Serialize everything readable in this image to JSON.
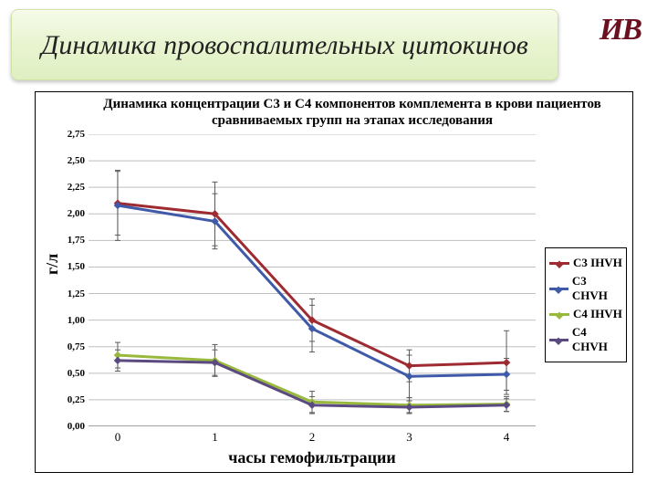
{
  "banner": {
    "title": "Динамика провоспалительных цитокинов"
  },
  "logo": {
    "text": "ИВ"
  },
  "chart": {
    "type": "line",
    "title": "Динамика концентрации С3 и С4 компонентов комплемента в крови пациентов сравниваемых групп на этапах исследования",
    "title_fontsize": 15,
    "xlabel": "часы гемофильтрации",
    "ylabel": "г/л",
    "label_fontsize": 18,
    "xlim": [
      -0.3,
      4.3
    ],
    "ylim": [
      0.0,
      2.75
    ],
    "ytick_step": 0.25,
    "x_categories": [
      "0",
      "1",
      "2",
      "3",
      "4"
    ],
    "grid_color": "#bfbfbf",
    "axis_color": "#808080",
    "background_color": "#ffffff",
    "line_width": 3,
    "marker_size": 6,
    "errorbar_color": "#5a5a5a",
    "errorbar_width": 1,
    "cap_width": 6,
    "series": [
      {
        "name": "C3 IHVH",
        "color": "#9e2b31",
        "marker": "diamond",
        "x": [
          0,
          1,
          2,
          3,
          4
        ],
        "y": [
          2.1,
          2.0,
          1.0,
          0.57,
          0.6
        ],
        "err": [
          0.3,
          0.3,
          0.2,
          0.15,
          0.3
        ]
      },
      {
        "name": "C3 CHVH",
        "color": "#3f5aa8",
        "marker": "diamond",
        "x": [
          0,
          1,
          2,
          3,
          4
        ],
        "y": [
          2.08,
          1.93,
          0.92,
          0.47,
          0.49
        ],
        "err": [
          0.33,
          0.26,
          0.22,
          0.2,
          0.15
        ]
      },
      {
        "name": "C4 IHVH",
        "color": "#98b93c",
        "marker": "diamond",
        "x": [
          0,
          1,
          2,
          3,
          4
        ],
        "y": [
          0.67,
          0.62,
          0.23,
          0.2,
          0.21
        ],
        "err": [
          0.12,
          0.15,
          0.1,
          0.07,
          0.07
        ]
      },
      {
        "name": "C4 CHVH",
        "color": "#5a4a80",
        "marker": "diamond",
        "x": [
          0,
          1,
          2,
          3,
          4
        ],
        "y": [
          0.62,
          0.6,
          0.2,
          0.18,
          0.2
        ],
        "err": [
          0.1,
          0.12,
          0.08,
          0.06,
          0.06
        ]
      }
    ]
  }
}
